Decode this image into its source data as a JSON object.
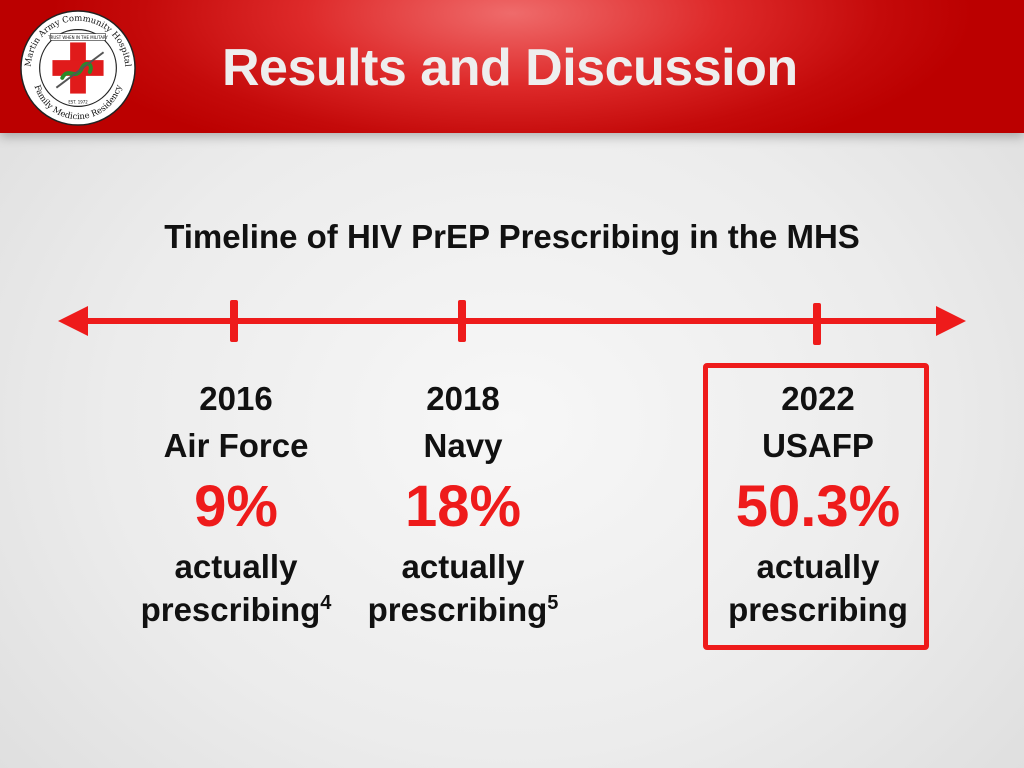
{
  "header": {
    "title": "Results and Discussion",
    "logo": {
      "ring_top": "Martin Army Community Hospital",
      "ring_bottom": "Family Medicine Residency",
      "banner": "TRUST WHEN IN THE MILITARY",
      "est": "EST. 1972"
    }
  },
  "slide": {
    "subtitle": "Timeline of HIV PrEP Prescribing in the MHS",
    "entries": [
      {
        "year": "2016",
        "org": "Air Force",
        "percent": "9%",
        "line1": "actually",
        "line2": "prescribing",
        "ref": "4"
      },
      {
        "year": "2018",
        "org": "Navy",
        "percent": "18%",
        "line1": "actually",
        "line2": "prescribing",
        "ref": "5"
      },
      {
        "year": "2022",
        "org": "USAFP",
        "percent": "50.3%",
        "line1": "actually",
        "line2": "prescribing",
        "ref": ""
      }
    ]
  },
  "colors": {
    "header_red": "#c40a0a",
    "accent_red": "#ee1b1b",
    "title_text": "#eeeeee"
  }
}
